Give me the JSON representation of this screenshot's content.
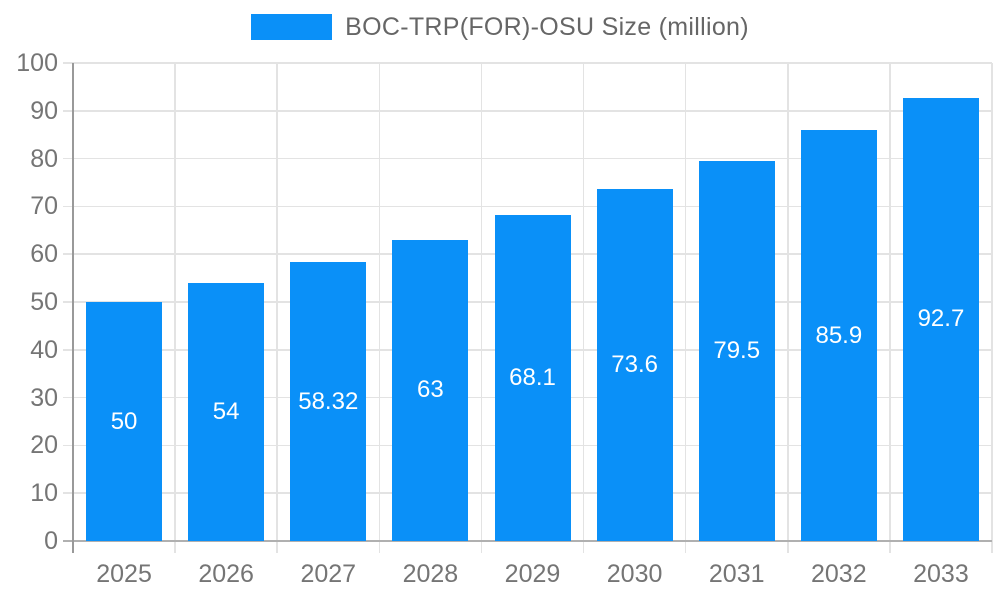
{
  "legend": {
    "label": "BOC-TRP(FOR)-OSU Size (million)"
  },
  "colors": {
    "bar": "#0a90f8",
    "grid": "#e3e3e3",
    "y_axis_line": "#999999",
    "x_axis_line": "#b0b0b0",
    "tick_text": "#757575",
    "legend_text": "#666666",
    "value_text": "#ffffff",
    "background": "#ffffff"
  },
  "chart_data": {
    "type": "bar",
    "title": "",
    "series_name": "BOC-TRP(FOR)-OSU Size (million)",
    "categories": [
      "2025",
      "2026",
      "2027",
      "2028",
      "2029",
      "2030",
      "2031",
      "2032",
      "2033"
    ],
    "values": [
      50,
      54,
      58.32,
      63,
      68.1,
      73.6,
      79.5,
      85.9,
      92.7
    ],
    "value_labels": [
      "50",
      "54",
      "58.32",
      "63",
      "68.1",
      "73.6",
      "79.5",
      "85.9",
      "92.7"
    ],
    "xlabel": "",
    "ylabel": "",
    "ylim": [
      0,
      100
    ],
    "yticks": [
      0,
      10,
      20,
      30,
      40,
      50,
      60,
      70,
      80,
      90,
      100
    ],
    "grid": true,
    "legend_position": "top"
  }
}
